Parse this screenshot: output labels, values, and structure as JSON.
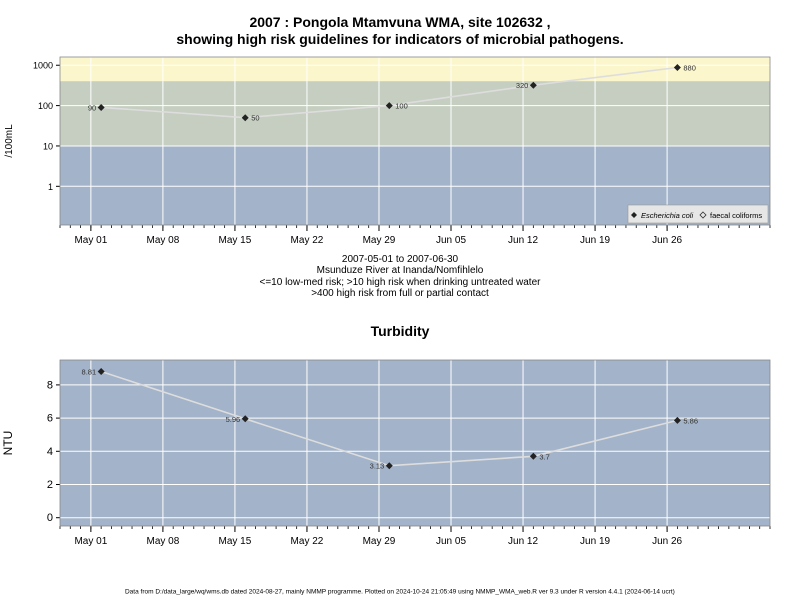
{
  "colors": {
    "plot_bg": "#a3b3c9",
    "mid_band": "#c5cec1",
    "high_band": "#fbf6cb",
    "gridline": "#ffffff",
    "series_line": "#dddddd",
    "marker": "#222222"
  },
  "chart_data": [
    {
      "type": "line",
      "title": "2007 : Pongola Mtamvuna WMA, site 102632 ,",
      "subtitle": "showing high risk guidelines for indicators of microbial pathogens.",
      "ylabel": "/100mL",
      "yscale": "log",
      "ylim": [
        0.11,
        1600
      ],
      "yticks": [
        1,
        10,
        100,
        1000
      ],
      "ytick_labels": [
        "1",
        "10",
        "100",
        "1000"
      ],
      "xlim": [
        "2007-04-28",
        "2007-07-06"
      ],
      "xticks": [
        "2007-05-01",
        "2007-05-08",
        "2007-05-15",
        "2007-05-22",
        "2007-05-29",
        "2007-06-05",
        "2007-06-12",
        "2007-06-19",
        "2007-06-26"
      ],
      "xtick_labels": [
        "May 01",
        "May 08",
        "May 15",
        "May 22",
        "May 29",
        "Jun 05",
        "Jun 12",
        "Jun 19",
        "Jun 26"
      ],
      "grid": true,
      "bands": [
        {
          "from": 0.11,
          "to": 10,
          "color_key": "plot_bg"
        },
        {
          "from": 10,
          "to": 400,
          "color_key": "mid_band"
        },
        {
          "from": 400,
          "to": 1600,
          "color_key": "high_band"
        }
      ],
      "series": [
        {
          "name": "Escherichia coli",
          "x": [
            "2007-05-02",
            "2007-05-16",
            "2007-05-30",
            "2007-06-13",
            "2007-06-27"
          ],
          "values": [
            90,
            50,
            100,
            320,
            880
          ],
          "labels": [
            "90",
            "50",
            "100",
            "320",
            "880"
          ]
        }
      ],
      "legend": {
        "position": "bottom-right",
        "entries": [
          "Escherichia coli",
          "faecal coliforms"
        ]
      },
      "notes": [
        "2007-05-01 to 2007-06-30",
        "Msunduze River at Inanda/Nomfihlelo",
        "<=10 low-med risk; >10 high risk when drinking untreated water",
        ">400 high risk from full or partial contact"
      ]
    },
    {
      "type": "line",
      "title": "Turbidity",
      "ylabel": "NTU",
      "ylim": [
        -0.5,
        9.5
      ],
      "yticks": [
        0,
        2,
        4,
        6,
        8
      ],
      "ytick_labels": [
        "0",
        "2",
        "4",
        "6",
        "8"
      ],
      "xlim": [
        "2007-04-28",
        "2007-07-06"
      ],
      "xticks": [
        "2007-05-01",
        "2007-05-08",
        "2007-05-15",
        "2007-05-22",
        "2007-05-29",
        "2007-06-05",
        "2007-06-12",
        "2007-06-19",
        "2007-06-26"
      ],
      "xtick_labels": [
        "May 01",
        "May 08",
        "May 15",
        "May 22",
        "May 29",
        "Jun 05",
        "Jun 12",
        "Jun 19",
        "Jun 26"
      ],
      "grid": true,
      "series": [
        {
          "x": [
            "2007-05-02",
            "2007-05-16",
            "2007-05-30",
            "2007-06-13",
            "2007-06-27"
          ],
          "values": [
            8.81,
            5.96,
            3.13,
            3.7,
            5.86
          ],
          "labels": [
            "8.81",
            "5.96",
            "3.13",
            "3.7",
            "5.86"
          ]
        }
      ]
    }
  ],
  "footer": "Data from D:/data_large/wq/wms.db dated 2024-08-27, mainly NMMP programme. Plotted on 2024-10-24 21:05:49 using NMMP_WMA_web.R ver 9.3 under R version 4.4.1 (2024-06-14 ucrt)"
}
